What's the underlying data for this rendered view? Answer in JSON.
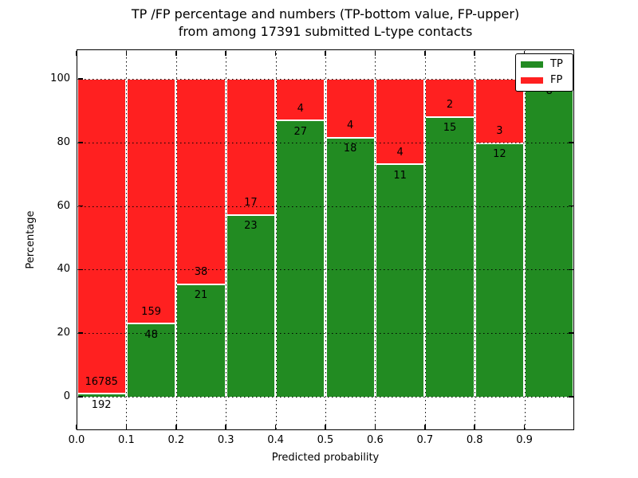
{
  "header": {
    "title_line1": "TP /FP percentage and numbers (TP-bottom value, FP-upper)",
    "title_line2": "from among 17391 submitted L-type contacts"
  },
  "chart_data": {
    "type": "bar",
    "stacked": true,
    "title": "TP /FP percentage and numbers (TP-bottom value, FP-upper)\nfrom among 17391 submitted L-type contacts",
    "total_submitted": 17391,
    "xlabel": "Predicted probability",
    "ylabel": "Percentage",
    "xlim": [
      0.0,
      1.0
    ],
    "ylim": [
      -10,
      110
    ],
    "bin_width": 0.1,
    "x_tick_labels": [
      "0.0",
      "0.1",
      "0.2",
      "0.3",
      "0.4",
      "0.5",
      "0.6",
      "0.7",
      "0.8",
      "0.9"
    ],
    "y_ticks": [
      0,
      20,
      40,
      60,
      80,
      100
    ],
    "y_tick_labels": [
      "0",
      "20",
      "40",
      "60",
      "80",
      "100"
    ],
    "categories": [
      "0.0-0.1",
      "0.1-0.2",
      "0.2-0.3",
      "0.3-0.4",
      "0.4-0.5",
      "0.5-0.6",
      "0.6-0.7",
      "0.7-0.8",
      "0.8-0.9",
      "0.9-1.0"
    ],
    "series": [
      {
        "name": "TP",
        "color": "#228b22",
        "values": [
          192,
          48,
          21,
          23,
          27,
          18,
          11,
          15,
          12,
          8
        ]
      },
      {
        "name": "FP",
        "color": "#ff2020",
        "values": [
          16785,
          159,
          38,
          17,
          4,
          4,
          4,
          2,
          3,
          0
        ]
      }
    ],
    "tp_percent": [
      1.1,
      23.2,
      35.6,
      57.5,
      87.1,
      81.8,
      73.3,
      88.2,
      80.0,
      100.0
    ],
    "grid": true,
    "legend": {
      "position": "upper right",
      "entries": [
        {
          "label": "TP",
          "color": "#228b22"
        },
        {
          "label": "FP",
          "color": "#ff2020"
        }
      ]
    }
  }
}
